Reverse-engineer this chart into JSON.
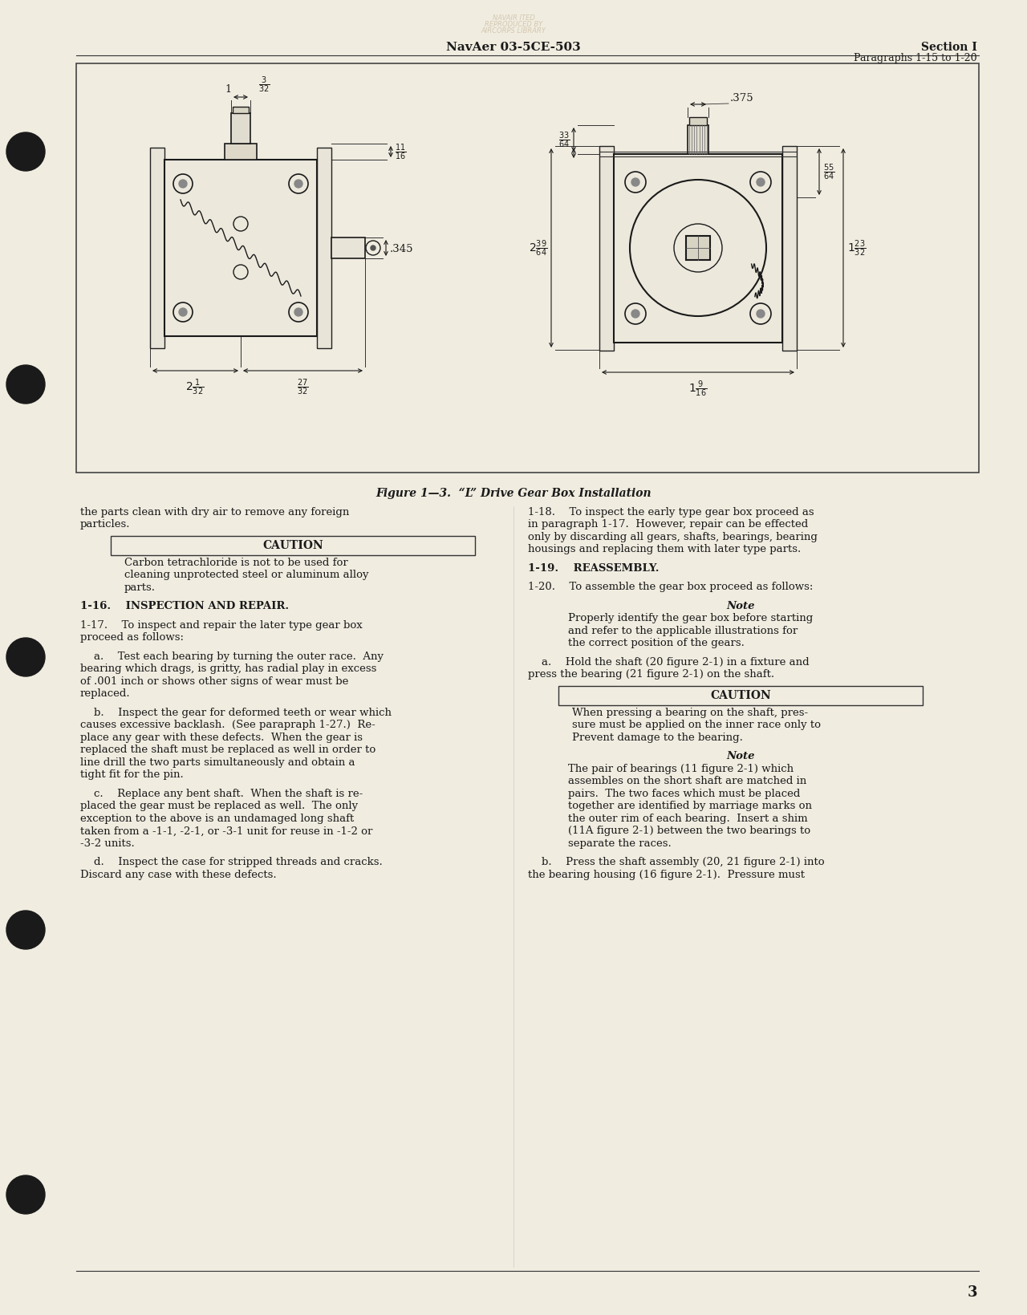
{
  "page_bg": "#f0ece0",
  "header_left": "NavAer 03-5CE-503",
  "header_right_line1": "Section I",
  "header_right_line2": "Paragraphs 1-15 to 1-20",
  "figure_caption": "Figure 1—3.  “L” Drive Gear Box Installation",
  "page_number": "3",
  "left_col_paragraphs": [
    {
      "type": "normal",
      "text": "the parts clean with dry air to remove any foreign\nparticles."
    },
    {
      "type": "caution",
      "label": "CAUTION",
      "text": "Carbon tetrachloride is not to be used for\ncleaning unprotected steel or aluminum alloy\nparts."
    },
    {
      "type": "heading",
      "text": "1-16.  INSPECTION AND REPAIR."
    },
    {
      "type": "normal",
      "text": "1-17.  To inspect and repair the later type gear box\nproceed as follows:"
    },
    {
      "type": "normal",
      "text": "    a.  Test each bearing by turning the outer race.  Any\nbearing which drags, is gritty, has radial play in excess\nof .001 inch or shows other signs of wear must be\nreplaced."
    },
    {
      "type": "normal",
      "text": "    b.  Inspect the gear for deformed teeth or wear which\ncauses excessive backlash.  (See parapraph 1-27.)  Re-\nplace any gear with these defects.  When the gear is\nreplaced the shaft must be replaced as well in order to\nline drill the two parts simultaneously and obtain a\ntight fit for the pin."
    },
    {
      "type": "normal",
      "text": "    c.  Replace any bent shaft.  When the shaft is re-\nplaced the gear must be replaced as well.  The only\nexception to the above is an undamaged long shaft\ntaken from a -1-1, -2-1, or -3-1 unit for reuse in -1-2 or\n-3-2 units."
    },
    {
      "type": "normal",
      "text": "    d.  Inspect the case for stripped threads and cracks.\nDiscard any case with these defects."
    }
  ],
  "right_col_paragraphs": [
    {
      "type": "normal",
      "text": "1-18.  To inspect the early type gear box proceed as\nin paragraph 1-17.  However, repair can be effected\nonly by discarding all gears, shafts, bearings, bearing\nhousings and replacing them with later type parts."
    },
    {
      "type": "heading",
      "text": "1-19.  REASSEMBLY."
    },
    {
      "type": "normal",
      "text": "1-20.  To assemble the gear box proceed as follows:"
    },
    {
      "type": "note",
      "label": "Note",
      "text": "Properly identify the gear box before starting\nand refer to the applicable illustrations for\nthe correct position of the gears."
    },
    {
      "type": "normal",
      "text": "    a.  Hold the shaft (20 figure 2-1) in a fixture and\npress the bearing (21 figure 2-1) on the shaft."
    },
    {
      "type": "caution",
      "label": "CAUTION",
      "text": "When pressing a bearing on the shaft, pres-\nsure must be applied on the inner race only to\nPrevent damage to the bearing."
    },
    {
      "type": "note",
      "label": "Note",
      "text": "The pair of bearings (11 figure 2-1) which\nassembles on the short shaft are matched in\npairs.  The two faces which must be placed\ntogether are identified by marriage marks on\nthe outer rim of each bearing.  Insert a shim\n(11A figure 2-1) between the two bearings to\nseparate the races."
    },
    {
      "type": "normal",
      "text": "    b.  Press the shaft assembly (20, 21 figure 2-1) into\nthe bearing housing (16 figure 2-1).  Pressure must"
    }
  ]
}
